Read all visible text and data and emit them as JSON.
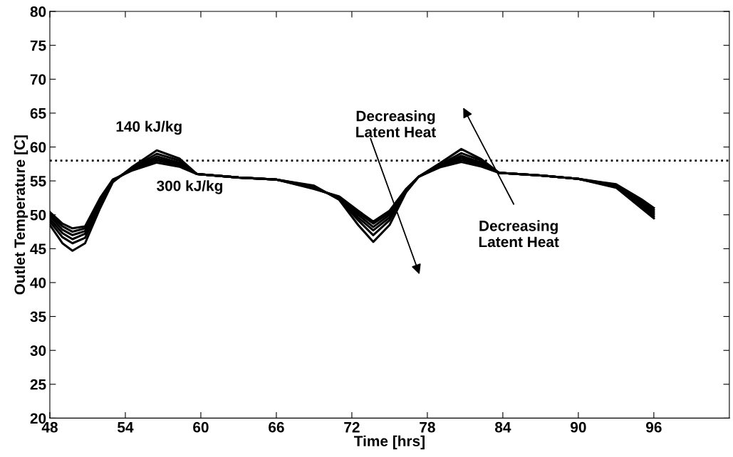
{
  "chart_data": {
    "type": "line",
    "xlabel": "Time [hrs]",
    "ylabel": "Outlet Temperature [C]",
    "x": [
      48,
      49,
      49.8,
      50.8,
      52,
      53,
      54.5,
      56.5,
      58.3,
      59.7,
      63,
      66,
      69,
      71,
      72.5,
      73.7,
      75,
      76.3,
      77.3,
      79,
      80.7,
      82.3,
      83.7,
      87,
      90,
      93,
      95,
      96
    ],
    "series": [
      {
        "color": "#000000",
        "values": [
          48.5,
          45.8,
          44.7,
          45.8,
          51.0,
          54.8,
          57.0,
          59.5,
          58.3,
          56.0,
          55.5,
          55.2,
          54.3,
          52.2,
          48.5,
          46.0,
          48.5,
          53.3,
          55.6,
          57.6,
          59.7,
          58.2,
          56.2,
          55.8,
          55.3,
          54.0,
          51.0,
          49.5
        ]
      },
      {
        "color": "#000000",
        "values": [
          49.0,
          46.7,
          45.8,
          46.6,
          51.3,
          54.9,
          56.9,
          59.0,
          58.0,
          56.0,
          55.5,
          55.2,
          54.2,
          52.3,
          49.2,
          47.0,
          49.2,
          53.4,
          55.6,
          57.4,
          59.1,
          58.0,
          56.2,
          55.8,
          55.3,
          54.1,
          51.3,
          49.8
        ]
      },
      {
        "color": "#000000",
        "values": [
          49.4,
          47.3,
          46.4,
          47.2,
          51.6,
          55.0,
          56.8,
          58.6,
          57.7,
          56.0,
          55.5,
          55.2,
          54.1,
          52.4,
          49.6,
          47.7,
          49.6,
          53.5,
          55.6,
          57.3,
          58.7,
          57.7,
          56.2,
          55.8,
          55.3,
          54.2,
          51.6,
          50.1
        ]
      },
      {
        "color": "#000000",
        "values": [
          49.8,
          47.8,
          47.0,
          47.6,
          51.9,
          55.0,
          56.7,
          58.3,
          57.5,
          56.0,
          55.5,
          55.2,
          54.0,
          52.5,
          50.0,
          48.2,
          50.0,
          53.6,
          55.6,
          57.2,
          58.4,
          57.5,
          56.2,
          55.8,
          55.3,
          54.3,
          51.9,
          50.4
        ]
      },
      {
        "color": "#000000",
        "values": [
          50.1,
          48.3,
          47.5,
          48.0,
          52.2,
          55.1,
          56.6,
          58.0,
          57.3,
          56.0,
          55.5,
          55.2,
          53.9,
          52.6,
          50.3,
          48.7,
          50.3,
          53.7,
          55.6,
          57.1,
          58.1,
          57.3,
          56.2,
          55.8,
          55.3,
          54.4,
          52.1,
          50.7
        ]
      },
      {
        "color": "#000000",
        "values": [
          50.4,
          48.7,
          48.0,
          48.3,
          52.5,
          55.2,
          56.5,
          57.7,
          57.1,
          56.0,
          55.5,
          55.2,
          53.8,
          52.7,
          50.6,
          49.0,
          50.6,
          53.8,
          55.6,
          57.0,
          57.8,
          57.1,
          56.2,
          55.8,
          55.3,
          54.5,
          52.3,
          51.0
        ]
      }
    ],
    "line_style": "solid",
    "marker": "none",
    "grid": false,
    "legend": false,
    "xlim": [
      48,
      102
    ],
    "xticks": [
      48,
      54,
      60,
      66,
      72,
      78,
      84,
      90,
      96
    ],
    "ylim": [
      20,
      80
    ],
    "yticks": [
      20,
      25,
      30,
      35,
      40,
      45,
      50,
      55,
      60,
      65,
      70,
      75,
      80
    ],
    "ref_lines": [
      {
        "axis": "y",
        "value": 58,
        "color": "#000000",
        "line_style": "dotted"
      }
    ],
    "annotations": [
      "140 kJ/kg",
      "300 kJ/kg",
      "Decreasing\nLatent Heat",
      "Decreasing\nLatent Heat"
    ]
  }
}
